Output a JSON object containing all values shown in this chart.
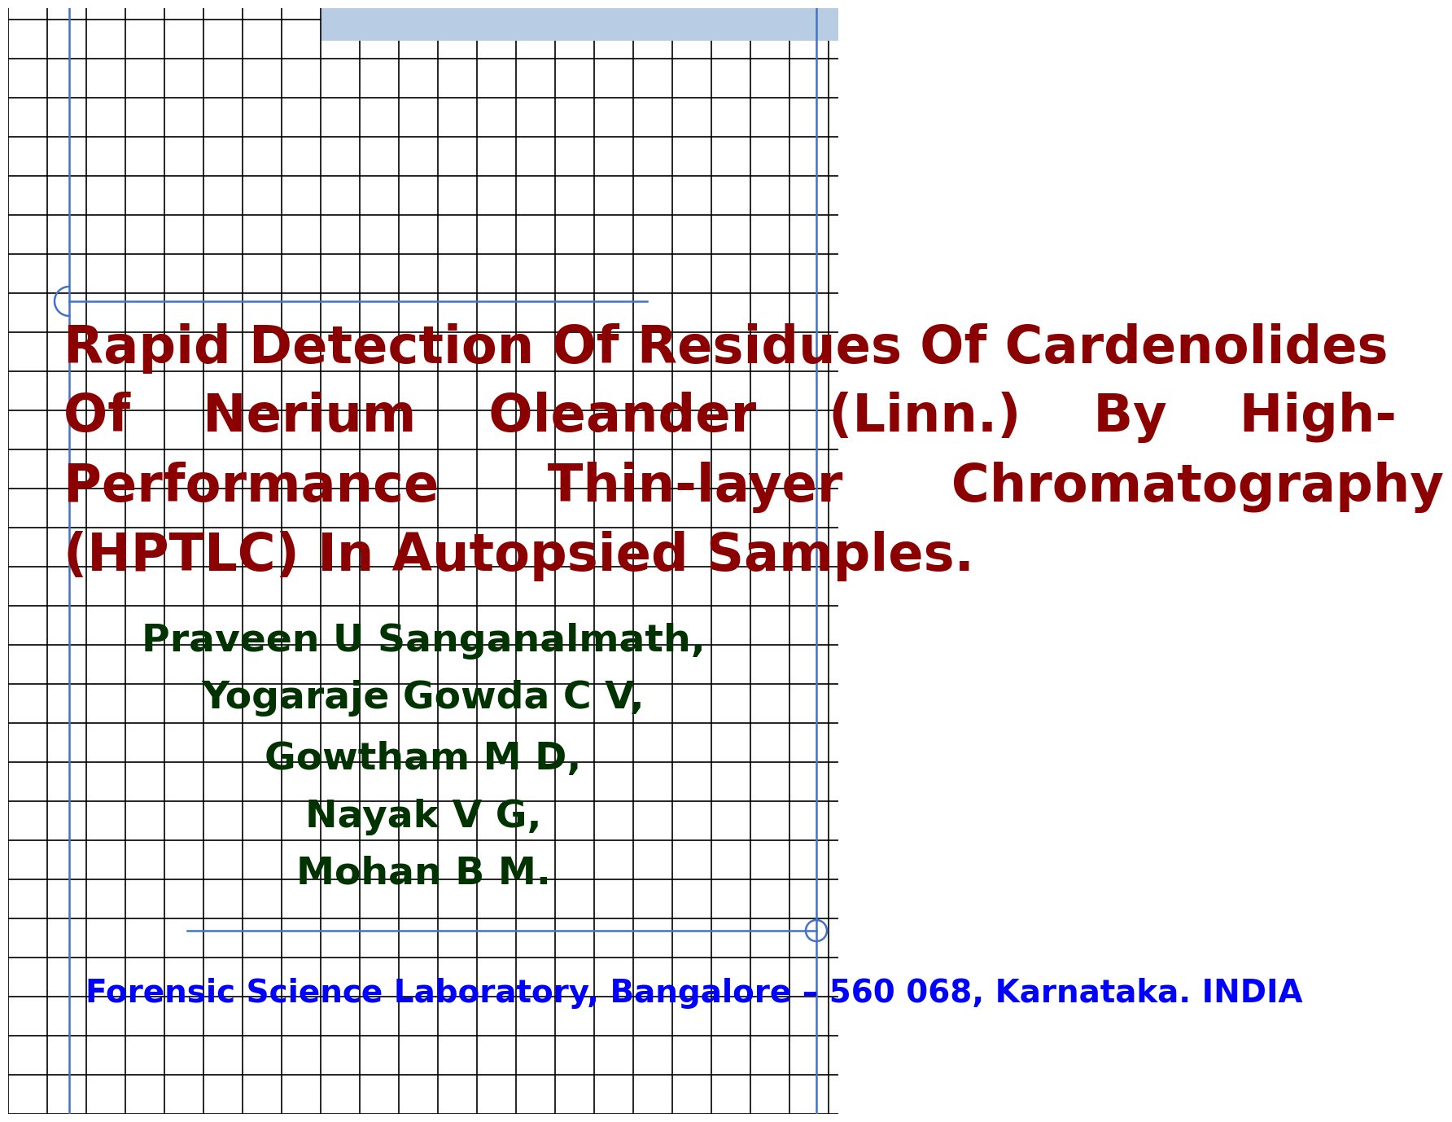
{
  "title_lines": [
    "Rapid Detection Of Residues Of Cardenolides",
    "Of    Nerium    Oleander    (Linn.)    By    High-",
    "Performance      Thin-layer      Chromatography",
    "(HPTLC) In Autopsied Samples."
  ],
  "title_color": "#8B0000",
  "title_fontsize": 46,
  "authors": [
    "Praveen U Sanganalmath,",
    "Yogaraje Gowda C V,",
    "Gowtham M D,",
    "Nayak V G,",
    "Mohan B M."
  ],
  "authors_color": "#003300",
  "authors_fontsize": 34,
  "affiliation": "Forensic Science Laboratory, Bangalore – 560 068, Karnataka. INDIA",
  "affiliation_color": "#0000FF",
  "affiliation_fontsize": 28,
  "bg_color": "#FFFFFF",
  "grid_color": "#000000",
  "grid_linewidth": 1.2,
  "blue_header_color": "#B8CCE4",
  "blue_line_color": "#4472C4"
}
